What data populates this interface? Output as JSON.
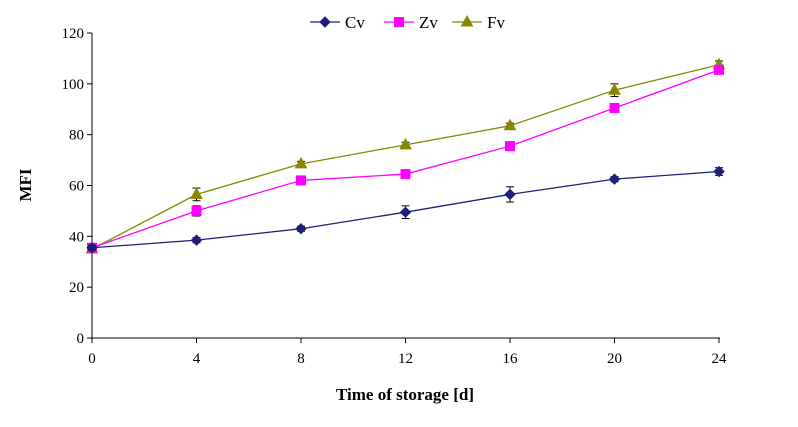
{
  "chart_data": {
    "type": "line",
    "title": "",
    "xlabel": "Time of storage [d]",
    "ylabel": "MFI",
    "x": [
      0,
      4,
      8,
      12,
      16,
      20,
      24
    ],
    "xlim": [
      0,
      24
    ],
    "ylim": [
      0,
      120
    ],
    "xticks": [
      "0",
      "4",
      "8",
      "12",
      "16",
      "20",
      "24"
    ],
    "yticks": [
      "0",
      "20",
      "40",
      "60",
      "80",
      "100",
      "120"
    ],
    "grid": false,
    "legend_position": "top-center",
    "series": [
      {
        "name": "Cv",
        "color": "#1f1f7a",
        "marker": "diamond",
        "values": [
          35.5,
          38.5,
          43,
          49.5,
          56.5,
          62.5,
          65.5
        ],
        "errors": [
          1,
          1,
          1,
          2.5,
          3,
          1,
          1.5
        ]
      },
      {
        "name": "Zv",
        "color": "#ff00ff",
        "marker": "square",
        "values": [
          35.5,
          50,
          62,
          64.5,
          75.5,
          90.5,
          105.5
        ],
        "errors": [
          1,
          2,
          1,
          1,
          1.5,
          1.5,
          1.5
        ]
      },
      {
        "name": "Fv",
        "color": "#888800",
        "marker": "triangle",
        "values": [
          35,
          56.5,
          68.5,
          76,
          83.5,
          97.5,
          107.5
        ],
        "errors": [
          1,
          2.5,
          1,
          1,
          1,
          2.5,
          1.5
        ]
      }
    ]
  }
}
